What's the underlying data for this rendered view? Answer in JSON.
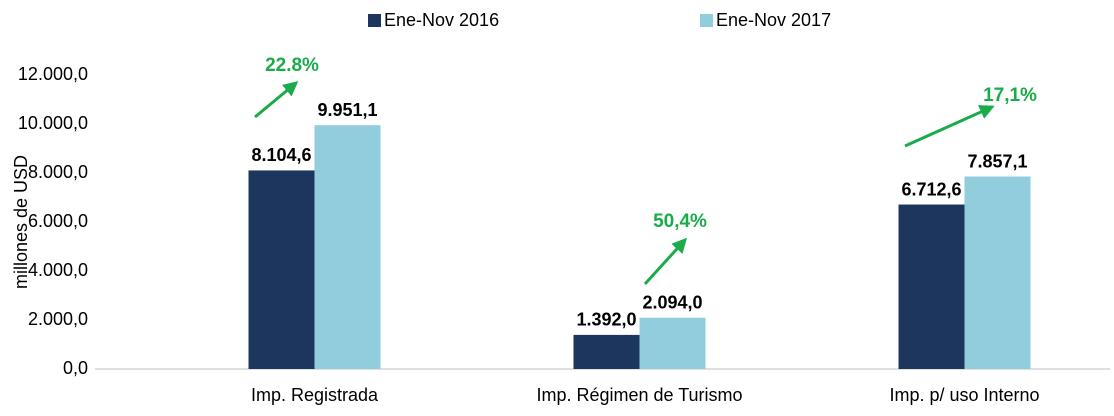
{
  "chart_data": {
    "type": "bar",
    "y_label": "millones de USD",
    "categories": [
      "Imp. Registrada",
      "Imp. Régimen de Turismo",
      "Imp. p/ uso Interno"
    ],
    "series": [
      {
        "name": "Ene-Nov 2016",
        "color": "#1c365e",
        "values": [
          8104.6,
          1392.0,
          6712.6
        ],
        "value_labels": [
          "8.104,6",
          "1.392,0",
          "6.712,6"
        ]
      },
      {
        "name": "Ene-Nov 2017",
        "color": "#92cddd",
        "values": [
          9951.1,
          2094.0,
          7857.1
        ],
        "value_labels": [
          "9.951,1",
          "2.094,0",
          "7.857,1"
        ]
      }
    ],
    "ylim": [
      0,
      12000
    ],
    "yticks": [
      {
        "value": 0,
        "label": "0,0"
      },
      {
        "value": 2000,
        "label": "2.000,0"
      },
      {
        "value": 4000,
        "label": "4.000,0"
      },
      {
        "value": 6000,
        "label": "6.000,0"
      },
      {
        "value": 8000,
        "label": "8.000,0"
      },
      {
        "value": 10000,
        "label": "10.000,0"
      },
      {
        "value": 12000,
        "label": "12.000,0"
      }
    ],
    "annotations": [
      "22.8%",
      "50,4%",
      "17,1%"
    ],
    "legend": "top",
    "grid": false
  }
}
